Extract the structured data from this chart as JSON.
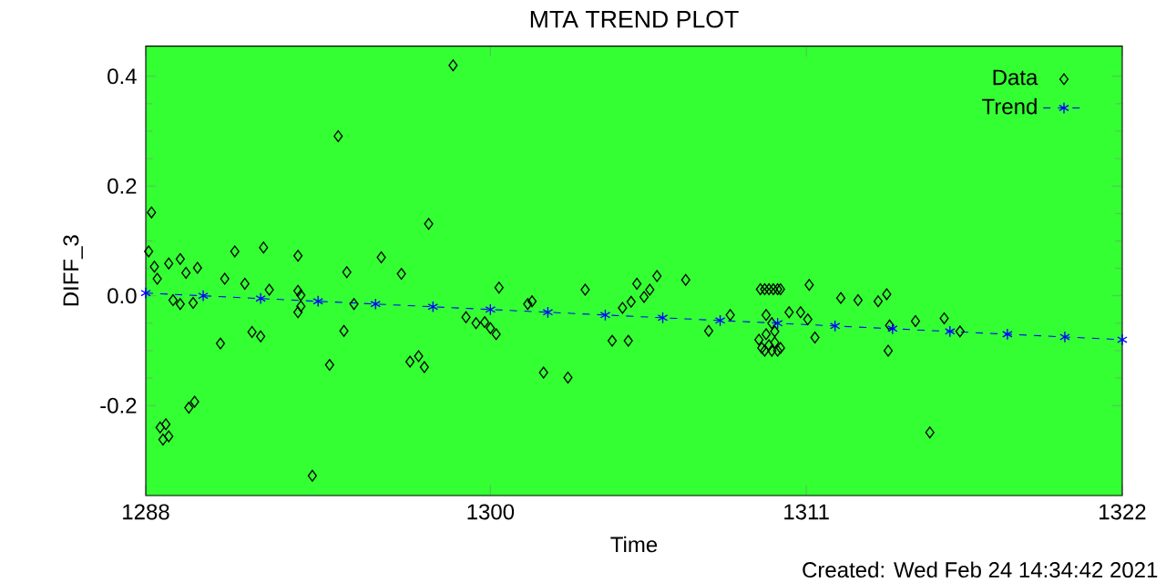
{
  "chart_data": {
    "type": "scatter",
    "title": "MTA TREND PLOT",
    "xlabel": "Time",
    "ylabel": "DIFF_3",
    "annotations": [
      "Created: Wed Feb 24 14:34:42 2021"
    ],
    "xlim": [
      1288,
      1322
    ],
    "xticks": [
      1288,
      1300,
      1311,
      1322
    ],
    "ylim": [
      -0.364,
      0.455
    ],
    "yticks": [
      -0.2,
      {
        "value": 0,
        "label": "0.0"
      },
      0.2,
      0.4
    ],
    "grid": false,
    "legend": "top right",
    "series": [
      {
        "name": "Data",
        "color": "#000000",
        "marker": "diamond",
        "x": [
          1288.2,
          1288.1,
          1288.3,
          1288.4,
          1288.5,
          1288.7,
          1288.6,
          1288.8,
          1288.8,
          1289.2,
          1288.95,
          1289.2,
          1289.4,
          1289.65,
          1289.8,
          1289.5,
          1289.7,
          1290.6,
          1290.75,
          1291.1,
          1291.45,
          1291.7,
          1292.0,
          1292.1,
          1292.3,
          1293.3,
          1293.3,
          1293.4,
          1293.3,
          1293.4,
          1293.8,
          1294.4,
          1294.7,
          1294.9,
          1295.0,
          1295.25,
          1296.2,
          1296.9,
          1297.2,
          1297.5,
          1297.7,
          1297.85,
          1298.7,
          1299.15,
          1299.5,
          1299.8,
          1300.0,
          1300.2,
          1300.3,
          1301.3,
          1301.45,
          1301.85,
          1302.7,
          1303.3,
          1304.24,
          1304.8,
          1304.6,
          1304.9,
          1305.1,
          1305.35,
          1305.55,
          1305.8,
          1306.8,
          1307.6,
          1308.35,
          1309.4,
          1309.55,
          1309.7,
          1309.85,
          1310.0,
          1310.1,
          1309.6,
          1309.8,
          1309.35,
          1309.45,
          1309.55,
          1309.7,
          1309.8,
          1309.9,
          1310.0,
          1310.1,
          1309.6,
          1309.9,
          1310.4,
          1310.8,
          1311.1,
          1311.05,
          1311.3,
          1312.2,
          1312.8,
          1313.5,
          1313.8,
          1313.9,
          1313.85,
          1314.8,
          1315.3,
          1315.8,
          1316.35
        ],
        "values": [
          0.152,
          0.081,
          0.053,
          0.031,
          -0.24,
          -0.234,
          -0.262,
          -0.256,
          0.059,
          0.067,
          -0.008,
          -0.015,
          0.042,
          -0.013,
          0.051,
          -0.204,
          -0.193,
          -0.087,
          0.031,
          0.081,
          0.022,
          -0.066,
          -0.074,
          0.088,
          0.011,
          0.073,
          0.009,
          0.001,
          -0.03,
          -0.019,
          -0.328,
          -0.126,
          0.291,
          -0.064,
          0.043,
          -0.015,
          0.07,
          0.04,
          -0.12,
          -0.11,
          -0.13,
          0.131,
          0.42,
          -0.039,
          -0.05,
          -0.048,
          -0.059,
          -0.07,
          0.015,
          -0.015,
          -0.01,
          -0.14,
          -0.149,
          0.011,
          -0.082,
          -0.082,
          -0.022,
          -0.011,
          0.022,
          -0.002,
          0.011,
          0.036,
          0.029,
          -0.064,
          -0.035,
          0.012,
          0.012,
          0.012,
          0.012,
          0.012,
          0.012,
          -0.035,
          -0.05,
          -0.08,
          -0.095,
          -0.1,
          -0.09,
          -0.1,
          -0.085,
          -0.1,
          -0.095,
          -0.07,
          -0.065,
          -0.03,
          -0.03,
          0.02,
          -0.043,
          -0.076,
          -0.004,
          -0.008,
          -0.01,
          0.003,
          -0.054,
          -0.1,
          -0.046,
          -0.249,
          -0.041,
          -0.065
        ]
      },
      {
        "name": "Trend",
        "type": "line",
        "color": "#0000ff",
        "marker": "cross",
        "line_style": "dashed",
        "x": [
          1288,
          1290,
          1292,
          1294,
          1296,
          1298,
          1300,
          1302,
          1304,
          1306,
          1308,
          1310,
          1312,
          1314,
          1316,
          1318,
          1320,
          1322
        ],
        "values": [
          0.005,
          0.0,
          -0.005,
          -0.01,
          -0.015,
          -0.02,
          -0.025,
          -0.03,
          -0.035,
          -0.04,
          -0.045,
          -0.05,
          -0.055,
          -0.06,
          -0.065,
          -0.07,
          -0.075,
          -0.08
        ]
      }
    ]
  }
}
